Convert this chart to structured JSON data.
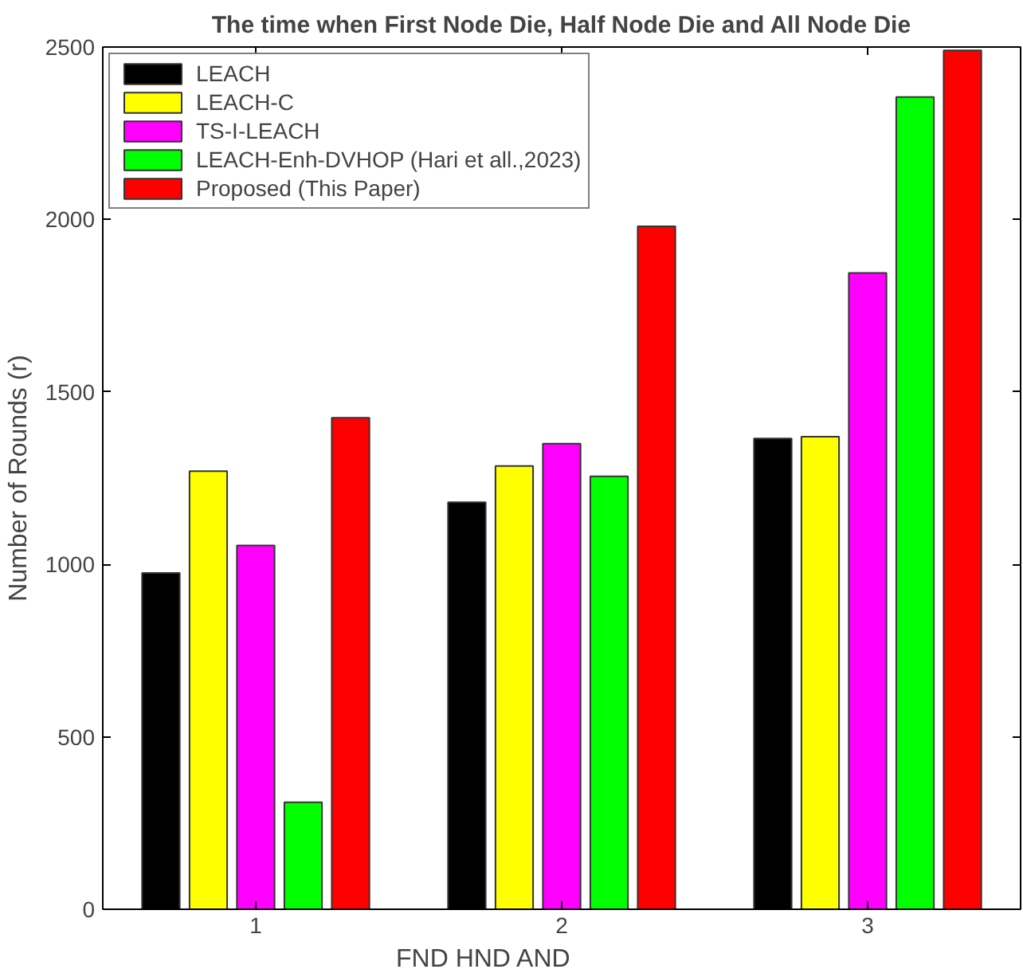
{
  "chart_data": {
    "type": "bar",
    "title": "The time when First Node Die, Half Node Die and All Node Die",
    "xlabel": "FND            HND            AND",
    "ylabel": "Number of Rounds (r)",
    "x": [
      1,
      2,
      3
    ],
    "xlim": [
      0.5,
      3.5
    ],
    "xticks": [
      1,
      2,
      3
    ],
    "ylim": [
      0,
      2500
    ],
    "yticks": [
      0,
      500,
      1000,
      1500,
      2000,
      2500
    ],
    "grid": false,
    "legend": "top left",
    "series": [
      {
        "name": "LEACH",
        "color": "#000000",
        "values": [
          975,
          1180,
          1365
        ]
      },
      {
        "name": "LEACH-C",
        "color": "#ffff00",
        "values": [
          1270,
          1285,
          1370
        ]
      },
      {
        "name": "TS-I-LEACH",
        "color": "#ff00ff",
        "values": [
          1055,
          1350,
          1845
        ]
      },
      {
        "name": "LEACH-Enh-DVHOP (Hari et all.,2023)",
        "color": "#00ff00",
        "values": [
          310,
          1255,
          2355
        ]
      },
      {
        "name": "Proposed (This Paper)",
        "color": "#ff0000",
        "values": [
          1425,
          1980,
          2490
        ]
      }
    ]
  }
}
